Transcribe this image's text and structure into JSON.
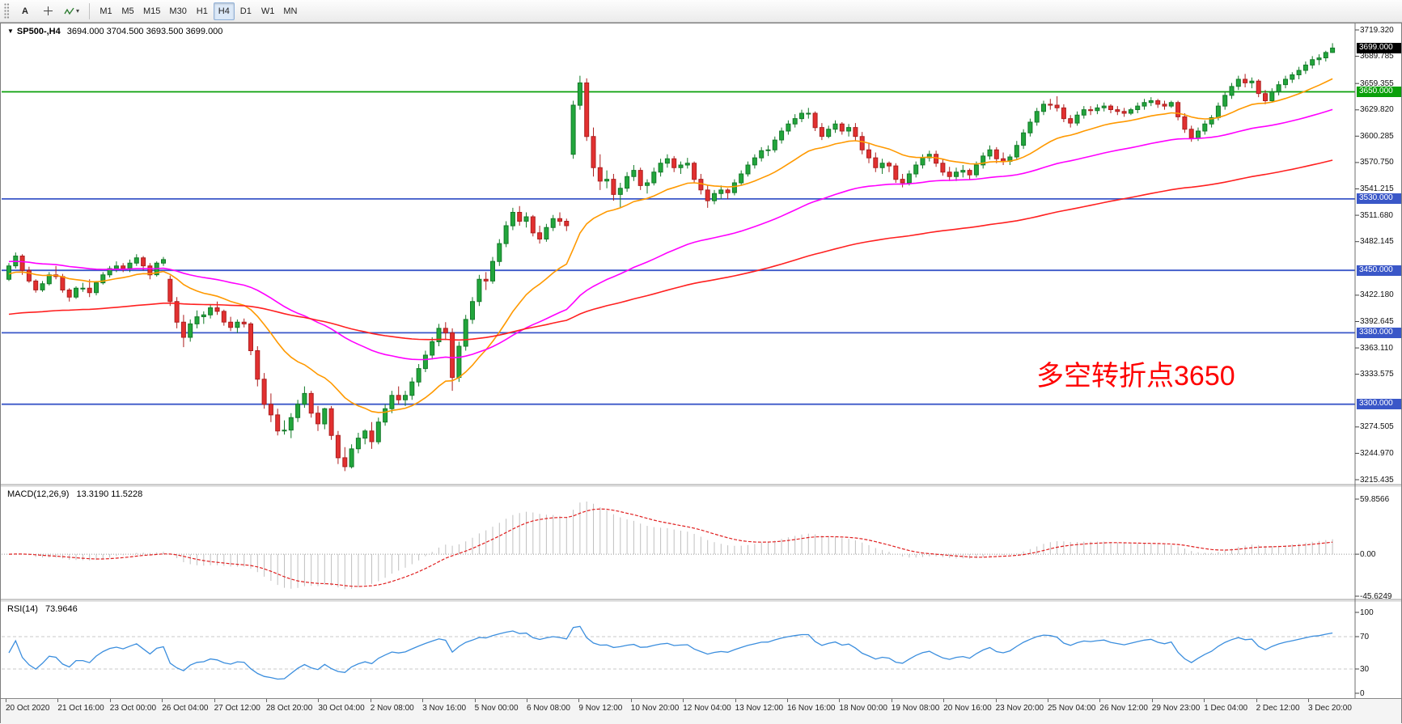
{
  "toolbar": {
    "text_tool_label": "A",
    "timeframes": [
      "M1",
      "M5",
      "M15",
      "M30",
      "H1",
      "H4",
      "D1",
      "W1",
      "MN"
    ],
    "active_timeframe": "H4"
  },
  "header": {
    "symbol": "SP500-,H4",
    "ohlc": "3694.000 3704.500 3693.500 3699.000"
  },
  "annotation": {
    "text": "多空转折点3650"
  },
  "price_axis": {
    "current_price": "3699.000",
    "current_value": 3699.0,
    "min": 3215.435,
    "max": 3719.32,
    "ticks": [
      "3719.320",
      "3689.785",
      "3659.355",
      "3629.820",
      "3600.285",
      "3570.750",
      "3541.215",
      "3511.680",
      "3482.145",
      "3422.180",
      "3392.645",
      "3363.110",
      "3333.575",
      "3274.505",
      "3244.970",
      "3215.435"
    ]
  },
  "levels": [
    {
      "label": "3650.000",
      "value": 3650.0,
      "color": "#0aa00a"
    },
    {
      "label": "3530.000",
      "value": 3530.0,
      "color": "#3a57c8"
    },
    {
      "label": "3450.000",
      "value": 3450.0,
      "color": "#3a57c8"
    },
    {
      "label": "3380.000",
      "value": 3380.0,
      "color": "#3a57c8"
    },
    {
      "label": "3300.000",
      "value": 3300.0,
      "color": "#3a57c8"
    }
  ],
  "macd": {
    "label": "MACD(12,26,9)",
    "values": "13.3190 11.5228",
    "range": [
      -45.6249,
      59.8566
    ],
    "ticks": [
      "59.8566",
      "0.00",
      "-45.6249"
    ]
  },
  "rsi": {
    "label": "RSI(14)",
    "value": "73.9646",
    "ticks": [
      "100",
      "70",
      "30",
      "0"
    ],
    "levels": [
      70,
      30
    ]
  },
  "time_axis": [
    "20 Oct 2020",
    "21 Oct 16:00",
    "23 Oct 00:00",
    "26 Oct 04:00",
    "27 Oct 12:00",
    "28 Oct 20:00",
    "30 Oct 04:00",
    "2 Nov 08:00",
    "3 Nov 16:00",
    "5 Nov 00:00",
    "6 Nov 08:00",
    "9 Nov 12:00",
    "10 Nov 20:00",
    "12 Nov 04:00",
    "13 Nov 12:00",
    "16 Nov 16:00",
    "18 Nov 00:00",
    "19 Nov 08:00",
    "20 Nov 16:00",
    "23 Nov 20:00",
    "25 Nov 04:00",
    "26 Nov 12:00",
    "29 Nov 23:00",
    "1 Dec 04:00",
    "2 Dec 12:00",
    "3 Dec 20:00"
  ],
  "colors": {
    "candle_up": "#22a63c",
    "candle_up_border": "#137a28",
    "candle_down": "#e23030",
    "candle_down_border": "#ad1f1f",
    "macd_hist": "#c0c0c0",
    "macd_signal": "#e02020",
    "rsi_line": "#3b8ede"
  },
  "chart_data": {
    "type": "candlestick",
    "title": "SP500- H4",
    "ylim": [
      3215.435,
      3719.32
    ],
    "x_labels": [
      "20 Oct 2020",
      "21 Oct 16:00",
      "23 Oct 00:00",
      "26 Oct 04:00",
      "27 Oct 12:00",
      "28 Oct 20:00",
      "30 Oct 04:00",
      "2 Nov 08:00",
      "3 Nov 16:00",
      "5 Nov 00:00",
      "6 Nov 08:00",
      "9 Nov 12:00",
      "10 Nov 20:00",
      "12 Nov 04:00",
      "13 Nov 12:00",
      "16 Nov 16:00",
      "18 Nov 00:00",
      "19 Nov 08:00",
      "20 Nov 16:00",
      "23 Nov 20:00",
      "25 Nov 04:00",
      "26 Nov 12:00",
      "29 Nov 23:00",
      "1 Dec 04:00",
      "2 Dec 12:00",
      "3 Dec 20:00"
    ],
    "hlines": [
      3650,
      3530,
      3450,
      3380,
      3300
    ],
    "overlays": [
      {
        "name": "ma-fast-orange",
        "period": 20,
        "seed": 3445,
        "color": "#ff9900"
      },
      {
        "name": "ma-mid-magenta",
        "period": 60,
        "seed": 3460,
        "color": "#ff00ff"
      },
      {
        "name": "ma-slow-red",
        "period": 140,
        "seed": 3400,
        "color": "#ff2020"
      }
    ],
    "indicators": [
      {
        "name": "MACD",
        "params": "12,26,9",
        "current": [
          13.319,
          11.5228
        ],
        "range": [
          -45.6249,
          59.8566
        ]
      },
      {
        "name": "RSI",
        "params": "14",
        "current": 73.9646,
        "range": [
          0,
          100
        ],
        "levels": [
          70,
          30
        ]
      }
    ],
    "candles": [
      [
        3440,
        3458,
        3438,
        3455
      ],
      [
        3455,
        3470,
        3452,
        3466
      ],
      [
        3466,
        3468,
        3445,
        3450
      ],
      [
        3450,
        3454,
        3436,
        3438
      ],
      [
        3438,
        3440,
        3425,
        3428
      ],
      [
        3428,
        3438,
        3426,
        3435
      ],
      [
        3435,
        3448,
        3433,
        3445
      ],
      [
        3445,
        3455,
        3440,
        3443
      ],
      [
        3443,
        3446,
        3425,
        3428
      ],
      [
        3428,
        3430,
        3415,
        3420
      ],
      [
        3420,
        3432,
        3418,
        3430
      ],
      [
        3430,
        3436,
        3426,
        3430
      ],
      [
        3430,
        3440,
        3420,
        3425
      ],
      [
        3425,
        3438,
        3422,
        3436
      ],
      [
        3436,
        3448,
        3434,
        3445
      ],
      [
        3445,
        3455,
        3442,
        3452
      ],
      [
        3452,
        3460,
        3448,
        3455
      ],
      [
        3455,
        3458,
        3448,
        3452
      ],
      [
        3452,
        3462,
        3448,
        3458
      ],
      [
        3458,
        3468,
        3455,
        3464
      ],
      [
        3464,
        3466,
        3450,
        3455
      ],
      [
        3455,
        3458,
        3440,
        3445
      ],
      [
        3445,
        3460,
        3443,
        3458
      ],
      [
        3458,
        3465,
        3455,
        3462
      ],
      [
        3440,
        3444,
        3410,
        3415
      ],
      [
        3415,
        3420,
        3385,
        3392
      ],
      [
        3392,
        3400,
        3364,
        3375
      ],
      [
        3375,
        3395,
        3370,
        3390
      ],
      [
        3390,
        3405,
        3385,
        3398
      ],
      [
        3398,
        3404,
        3390,
        3400
      ],
      [
        3400,
        3412,
        3396,
        3408
      ],
      [
        3408,
        3415,
        3400,
        3404
      ],
      [
        3404,
        3406,
        3388,
        3392
      ],
      [
        3392,
        3398,
        3382,
        3386
      ],
      [
        3386,
        3395,
        3380,
        3392
      ],
      [
        3392,
        3396,
        3386,
        3390
      ],
      [
        3390,
        3392,
        3355,
        3360
      ],
      [
        3360,
        3365,
        3320,
        3328
      ],
      [
        3328,
        3335,
        3295,
        3300
      ],
      [
        3300,
        3312,
        3280,
        3288
      ],
      [
        3288,
        3295,
        3265,
        3270
      ],
      [
        3270,
        3282,
        3266,
        3271
      ],
      [
        3271,
        3290,
        3262,
        3285
      ],
      [
        3285,
        3305,
        3280,
        3300
      ],
      [
        3300,
        3320,
        3296,
        3312
      ],
      [
        3312,
        3315,
        3285,
        3290
      ],
      [
        3290,
        3298,
        3270,
        3278
      ],
      [
        3278,
        3296,
        3272,
        3295
      ],
      [
        3295,
        3298,
        3260,
        3265
      ],
      [
        3265,
        3270,
        3233,
        3240
      ],
      [
        3240,
        3252,
        3225,
        3230
      ],
      [
        3230,
        3255,
        3228,
        3250
      ],
      [
        3250,
        3268,
        3245,
        3262
      ],
      [
        3262,
        3272,
        3255,
        3270
      ],
      [
        3270,
        3280,
        3250,
        3258
      ],
      [
        3258,
        3285,
        3255,
        3280
      ],
      [
        3280,
        3300,
        3276,
        3295
      ],
      [
        3295,
        3315,
        3290,
        3310
      ],
      [
        3310,
        3320,
        3300,
        3305
      ],
      [
        3305,
        3315,
        3298,
        3310
      ],
      [
        3310,
        3330,
        3305,
        3325
      ],
      [
        3325,
        3345,
        3320,
        3340
      ],
      [
        3340,
        3360,
        3336,
        3355
      ],
      [
        3355,
        3375,
        3350,
        3370
      ],
      [
        3370,
        3390,
        3365,
        3385
      ],
      [
        3385,
        3392,
        3372,
        3380
      ],
      [
        3380,
        3385,
        3315,
        3330
      ],
      [
        3330,
        3370,
        3325,
        3365
      ],
      [
        3365,
        3400,
        3360,
        3395
      ],
      [
        3395,
        3420,
        3390,
        3415
      ],
      [
        3415,
        3445,
        3410,
        3440
      ],
      [
        3440,
        3448,
        3428,
        3438
      ],
      [
        3438,
        3465,
        3435,
        3460
      ],
      [
        3460,
        3485,
        3455,
        3480
      ],
      [
        3480,
        3505,
        3476,
        3500
      ],
      [
        3500,
        3520,
        3495,
        3515
      ],
      [
        3515,
        3522,
        3500,
        3505
      ],
      [
        3505,
        3515,
        3498,
        3510
      ],
      [
        3510,
        3512,
        3488,
        3492
      ],
      [
        3492,
        3500,
        3480,
        3485
      ],
      [
        3485,
        3502,
        3482,
        3498
      ],
      [
        3498,
        3512,
        3494,
        3508
      ],
      [
        3508,
        3515,
        3500,
        3505
      ],
      [
        3505,
        3508,
        3494,
        3500
      ],
      [
        3580,
        3640,
        3575,
        3635
      ],
      [
        3635,
        3668,
        3630,
        3660
      ],
      [
        3660,
        3665,
        3595,
        3600
      ],
      [
        3600,
        3610,
        3555,
        3565
      ],
      [
        3565,
        3580,
        3540,
        3550
      ],
      [
        3550,
        3562,
        3542,
        3552
      ],
      [
        3552,
        3558,
        3528,
        3535
      ],
      [
        3535,
        3548,
        3520,
        3542
      ],
      [
        3542,
        3560,
        3538,
        3555
      ],
      [
        3555,
        3568,
        3550,
        3562
      ],
      [
        3562,
        3565,
        3540,
        3545
      ],
      [
        3545,
        3552,
        3536,
        3548
      ],
      [
        3548,
        3565,
        3545,
        3560
      ],
      [
        3560,
        3575,
        3555,
        3570
      ],
      [
        3570,
        3580,
        3565,
        3575
      ],
      [
        3575,
        3578,
        3560,
        3565
      ],
      [
        3565,
        3572,
        3558,
        3568
      ],
      [
        3568,
        3576,
        3564,
        3570
      ],
      [
        3570,
        3572,
        3548,
        3552
      ],
      [
        3552,
        3558,
        3535,
        3540
      ],
      [
        3540,
        3545,
        3520,
        3528
      ],
      [
        3528,
        3540,
        3524,
        3536
      ],
      [
        3536,
        3545,
        3530,
        3540
      ],
      [
        3540,
        3542,
        3530,
        3537
      ],
      [
        3537,
        3552,
        3534,
        3548
      ],
      [
        3548,
        3562,
        3545,
        3558
      ],
      [
        3558,
        3572,
        3555,
        3568
      ],
      [
        3568,
        3580,
        3564,
        3576
      ],
      [
        3576,
        3588,
        3572,
        3584
      ],
      [
        3584,
        3590,
        3578,
        3585
      ],
      [
        3585,
        3600,
        3582,
        3596
      ],
      [
        3596,
        3610,
        3592,
        3606
      ],
      [
        3606,
        3618,
        3602,
        3614
      ],
      [
        3614,
        3625,
        3610,
        3620
      ],
      [
        3620,
        3630,
        3616,
        3626
      ],
      [
        3626,
        3632,
        3620,
        3626
      ],
      [
        3626,
        3628,
        3606,
        3610
      ],
      [
        3610,
        3615,
        3596,
        3600
      ],
      [
        3600,
        3612,
        3598,
        3608
      ],
      [
        3608,
        3618,
        3604,
        3614
      ],
      [
        3614,
        3616,
        3602,
        3606
      ],
      [
        3606,
        3614,
        3600,
        3610
      ],
      [
        3610,
        3615,
        3595,
        3600
      ],
      [
        3600,
        3605,
        3580,
        3585
      ],
      [
        3585,
        3592,
        3570,
        3576
      ],
      [
        3576,
        3582,
        3560,
        3565
      ],
      [
        3565,
        3575,
        3558,
        3570
      ],
      [
        3570,
        3572,
        3560,
        3567
      ],
      [
        3567,
        3570,
        3548,
        3552
      ],
      [
        3552,
        3558,
        3543,
        3548
      ],
      [
        3548,
        3562,
        3545,
        3558
      ],
      [
        3558,
        3572,
        3554,
        3568
      ],
      [
        3568,
        3580,
        3564,
        3576
      ],
      [
        3576,
        3584,
        3572,
        3580
      ],
      [
        3580,
        3584,
        3566,
        3570
      ],
      [
        3570,
        3574,
        3556,
        3560
      ],
      [
        3560,
        3566,
        3550,
        3555
      ],
      [
        3555,
        3565,
        3550,
        3560
      ],
      [
        3560,
        3568,
        3554,
        3562
      ],
      [
        3562,
        3564,
        3552,
        3557
      ],
      [
        3557,
        3572,
        3554,
        3568
      ],
      [
        3568,
        3582,
        3564,
        3578
      ],
      [
        3578,
        3590,
        3574,
        3585
      ],
      [
        3585,
        3588,
        3570,
        3575
      ],
      [
        3575,
        3582,
        3568,
        3572
      ],
      [
        3572,
        3580,
        3568,
        3577
      ],
      [
        3577,
        3595,
        3574,
        3590
      ],
      [
        3590,
        3608,
        3586,
        3604
      ],
      [
        3604,
        3620,
        3600,
        3616
      ],
      [
        3616,
        3632,
        3612,
        3628
      ],
      [
        3628,
        3640,
        3624,
        3636
      ],
      [
        3636,
        3642,
        3630,
        3635
      ],
      [
        3635,
        3645,
        3628,
        3632
      ],
      [
        3632,
        3636,
        3616,
        3620
      ],
      [
        3620,
        3624,
        3610,
        3615
      ],
      [
        3615,
        3628,
        3612,
        3624
      ],
      [
        3624,
        3634,
        3620,
        3630
      ],
      [
        3630,
        3634,
        3624,
        3629
      ],
      [
        3629,
        3636,
        3625,
        3632
      ],
      [
        3632,
        3638,
        3628,
        3634
      ],
      [
        3634,
        3636,
        3626,
        3630
      ],
      [
        3630,
        3634,
        3624,
        3628
      ],
      [
        3628,
        3632,
        3622,
        3626
      ],
      [
        3626,
        3632,
        3624,
        3630
      ],
      [
        3630,
        3638,
        3626,
        3634
      ],
      [
        3634,
        3642,
        3630,
        3638
      ],
      [
        3638,
        3644,
        3634,
        3640
      ],
      [
        3640,
        3642,
        3632,
        3636
      ],
      [
        3636,
        3640,
        3630,
        3634
      ],
      [
        3634,
        3640,
        3632,
        3638
      ],
      [
        3638,
        3640,
        3618,
        3622
      ],
      [
        3622,
        3626,
        3604,
        3608
      ],
      [
        3608,
        3612,
        3594,
        3598
      ],
      [
        3598,
        3610,
        3595,
        3606
      ],
      [
        3606,
        3618,
        3602,
        3614
      ],
      [
        3614,
        3624,
        3610,
        3621
      ],
      [
        3621,
        3638,
        3618,
        3634
      ],
      [
        3634,
        3650,
        3630,
        3646
      ],
      [
        3646,
        3660,
        3642,
        3656
      ],
      [
        3656,
        3668,
        3652,
        3664
      ],
      [
        3664,
        3670,
        3655,
        3660
      ],
      [
        3660,
        3666,
        3654,
        3662
      ],
      [
        3662,
        3664,
        3644,
        3648
      ],
      [
        3648,
        3652,
        3636,
        3640
      ],
      [
        3640,
        3654,
        3638,
        3650
      ],
      [
        3650,
        3662,
        3646,
        3658
      ],
      [
        3658,
        3668,
        3654,
        3664
      ],
      [
        3664,
        3672,
        3660,
        3669
      ],
      [
        3669,
        3678,
        3664,
        3674
      ],
      [
        3674,
        3684,
        3670,
        3680
      ],
      [
        3680,
        3690,
        3676,
        3686
      ],
      [
        3686,
        3692,
        3680,
        3688
      ],
      [
        3688,
        3696,
        3684,
        3694
      ],
      [
        3694,
        3704.5,
        3693.5,
        3699
      ]
    ]
  }
}
